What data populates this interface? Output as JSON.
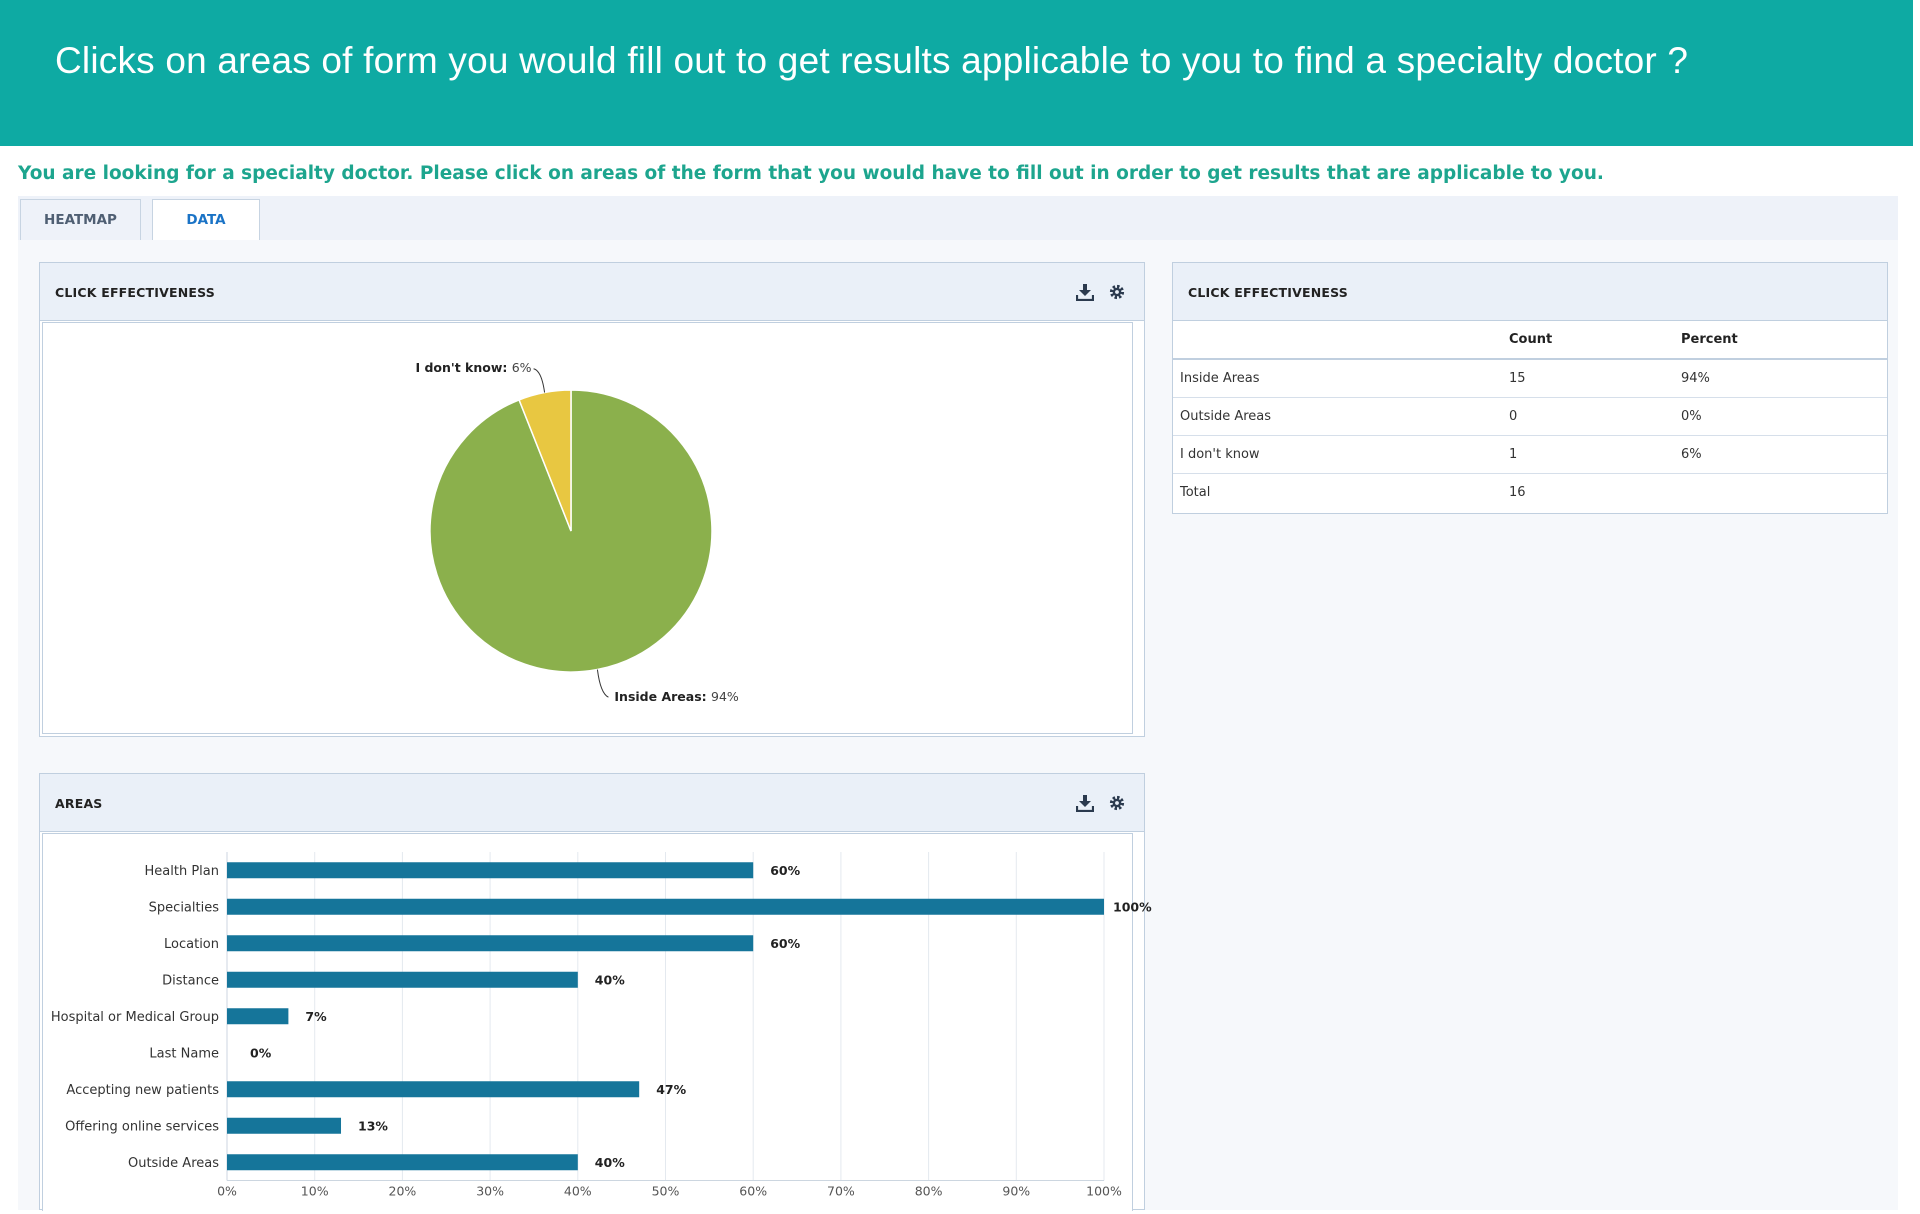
{
  "banner": {
    "title": "Clicks on areas of form you would fill out to get results applicable to you to find a specialty doctor ?"
  },
  "instructions": "You are looking for a specialty doctor. Please click on areas of the form that you would have to fill out in order to get results that are applicable to you.",
  "tabs": [
    {
      "label": "HEATMAP",
      "active": false
    },
    {
      "label": "DATA",
      "active": true
    }
  ],
  "panels": {
    "click_effectiveness_chart": {
      "title": "CLICK EFFECTIVENESS",
      "icons": [
        "download-icon",
        "gear-icon"
      ]
    },
    "areas_chart": {
      "title": "AREAS",
      "icons": [
        "download-icon",
        "gear-icon"
      ]
    },
    "click_effectiveness_table": {
      "title": "CLICK EFFECTIVENESS",
      "columns": [
        "",
        "Count",
        "Percent"
      ],
      "rows": [
        [
          "Inside Areas",
          "15",
          "94%"
        ],
        [
          "Outside Areas",
          "0",
          "0%"
        ],
        [
          "I don't know",
          "1",
          "6%"
        ],
        [
          "Total",
          "16",
          ""
        ]
      ]
    }
  },
  "colors": {
    "banner": "#0eaaa3",
    "pie_inside": "#8bb04c",
    "pie_dont_know": "#e8c741",
    "bar": "#15759a",
    "instructions": "#1da58e"
  },
  "chart_data": [
    {
      "type": "pie",
      "slices": [
        {
          "label": "Inside Areas",
          "value": 94,
          "display": "94%",
          "color": "#8bb04c"
        },
        {
          "label": "I don't know",
          "value": 6,
          "display": "6%",
          "color": "#e8c741"
        }
      ],
      "title": ""
    },
    {
      "type": "bar",
      "orientation": "horizontal",
      "categories": [
        "Health Plan",
        "Specialties",
        "Location",
        "Distance",
        "Hospital or Medical Group",
        "Last Name",
        "Accepting new patients",
        "Offering online services",
        "Outside Areas"
      ],
      "values": [
        60,
        100,
        60,
        40,
        7,
        0,
        47,
        13,
        40
      ],
      "value_labels": [
        "60%",
        "100%",
        "60%",
        "40%",
        "7%",
        "0%",
        "47%",
        "13%",
        "40%"
      ],
      "x_ticks": [
        "0%",
        "10%",
        "20%",
        "30%",
        "40%",
        "50%",
        "60%",
        "70%",
        "80%",
        "90%",
        "100%"
      ],
      "xlim": [
        0,
        100
      ],
      "grid": true,
      "title": "",
      "xlabel": "",
      "ylabel": ""
    }
  ]
}
